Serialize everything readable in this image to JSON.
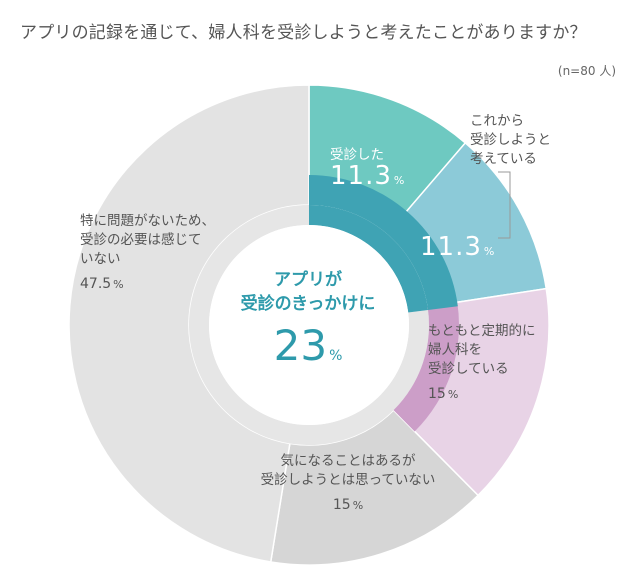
{
  "title": "アプリの記録を通じて、婦人科を受診しようと考えたことがありますか？",
  "sample_note": "(n=80 人)",
  "center": {
    "label_line1": "アプリが",
    "label_line2": "受診のきっかけに",
    "value": "23",
    "unit": "%"
  },
  "chart_data": {
    "type": "pie",
    "variant": "donut",
    "title": "アプリの記録を通じて、婦人科を受診しようと考えたことがありますか？",
    "slices": [
      {
        "label_lines": [
          "受診した"
        ],
        "value": 11.3,
        "value_text": "11.3",
        "color": "#6ec9c1"
      },
      {
        "label_lines": [
          "これから",
          "受診しようと",
          "考えている"
        ],
        "value": 11.3,
        "value_text": "11.3",
        "color": "#8ccad8"
      },
      {
        "label_lines": [
          "もともと定期的に",
          "婦人科を",
          "受診している"
        ],
        "value": 15,
        "value_text": "15",
        "color": "#e8d3e6"
      },
      {
        "label_lines": [
          "気になることはあるが",
          "受診しようとは思っていない"
        ],
        "value": 15,
        "value_text": "15",
        "color": "#d6d6d6"
      },
      {
        "label_lines": [
          "特に問題がないため、",
          "受診の必要は感じて",
          "いない"
        ],
        "value": 47.5,
        "value_text": "47.5",
        "color": "#e3e3e3"
      }
    ],
    "inner_ring": {
      "value": 23,
      "colors": {
        "highlight": "#3fa3b4",
        "rest": "#e6e6e6"
      }
    },
    "accent_colors": {
      "slice3_inner": "#cc9ec8",
      "center_text": "#2e9aab"
    },
    "unit": "%"
  }
}
